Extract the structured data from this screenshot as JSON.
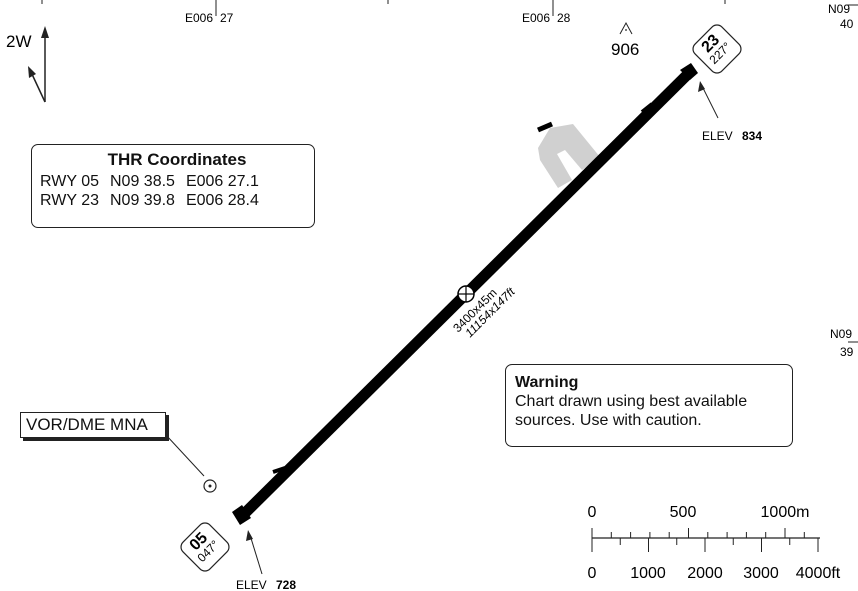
{
  "grid": {
    "lon_top": [
      {
        "prefix": "E006",
        "minutes": "27"
      },
      {
        "prefix": "E006",
        "minutes": "28"
      }
    ],
    "lat_right": [
      {
        "prefix": "N09",
        "minutes": "40"
      },
      {
        "prefix": "N09",
        "minutes": "39"
      }
    ]
  },
  "variation": {
    "label": "2W"
  },
  "obstacle": {
    "elevation": "906"
  },
  "thr_box": {
    "title": "THR Coordinates",
    "rows": [
      {
        "rwy": "RWY 05",
        "lat": "N09 38.5",
        "lon": "E006 27.1"
      },
      {
        "rwy": "RWY 23",
        "lat": "N09 39.8",
        "lon": "E006 28.4"
      }
    ]
  },
  "runway": {
    "dimensions_m": "3400x45m",
    "dimensions_ft": "11154x147ft",
    "end_ne": {
      "designator": "23",
      "heading": "227°",
      "elev_label": "ELEV",
      "elev_value": "834"
    },
    "end_sw": {
      "designator": "05",
      "heading": "047°",
      "elev_label": "ELEV",
      "elev_value": "728"
    }
  },
  "warning": {
    "title": "Warning",
    "text_line1": "Chart drawn using best available",
    "text_line2": "sources. Use with caution."
  },
  "navaid": {
    "label": "VOR/DME MNA"
  },
  "scale": {
    "metric_labels": [
      "0",
      "500",
      "1000m"
    ],
    "feet_labels": [
      "0",
      "1000",
      "2000",
      "3000",
      "4000ft"
    ]
  },
  "colors": {
    "runway": "#000000",
    "apron": "#d0d0d0",
    "lines": "#222222"
  }
}
